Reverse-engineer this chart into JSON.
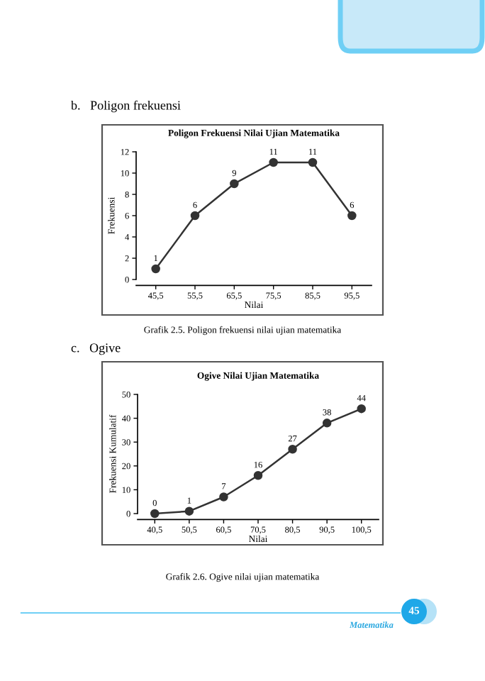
{
  "chart_data": [
    {
      "type": "line",
      "title": "Poligon Frekuensi Nilai Ujian Matematika",
      "xlabel": "Nilai",
      "ylabel": "Frekuensi",
      "categories": [
        "45,5",
        "55,5",
        "65,5",
        "75,5",
        "85,5",
        "95,5"
      ],
      "series": [
        {
          "color": "#333333",
          "values": [
            1,
            6,
            9,
            11,
            11,
            6
          ]
        }
      ],
      "ylim": [
        0,
        12
      ],
      "yticks": [
        0,
        2,
        4,
        6,
        8,
        10,
        12
      ],
      "marker": "circle",
      "line_style": "solid",
      "data_labels": true,
      "grid": false,
      "legend": false,
      "annotations": [
        "b.   Poligon frekuensi",
        "Grafik 2.5. Poligon frekuensi nilai ujian matematika"
      ]
    },
    {
      "type": "line",
      "title": "Ogive Nilai Ujian Matematika",
      "xlabel": "Nilai",
      "ylabel": "Frekuensi Kumulatif",
      "categories": [
        "40,5",
        "50,5",
        "60,5",
        "70,5",
        "80,5",
        "90,5",
        "100,5"
      ],
      "series": [
        {
          "color": "#333333",
          "values": [
            0,
            1,
            7,
            16,
            27,
            38,
            44
          ]
        }
      ],
      "ylim": [
        0,
        50
      ],
      "yticks": [
        0,
        10,
        20,
        30,
        40,
        50
      ],
      "marker": "circle",
      "line_style": "solid",
      "data_labels": true,
      "grid": false,
      "legend": false,
      "annotations": [
        "c.   Ogive",
        "Grafik 2.6. Ogive nilai ujian matematika",
        "Matematika",
        "45"
      ]
    }
  ]
}
